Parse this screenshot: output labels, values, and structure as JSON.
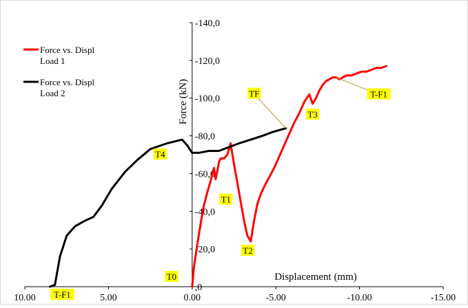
{
  "chart_data": {
    "type": "line",
    "xlabel": "Displacement (mm)",
    "ylabel": "Force (kN)",
    "xlim": [
      10,
      -15
    ],
    "ylim": [
      0,
      -140
    ],
    "x_ticks": [
      {
        "value": 10,
        "label": "10.00"
      },
      {
        "value": 5,
        "label": "5.00"
      },
      {
        "value": 0,
        "label": "0.00"
      },
      {
        "value": -5,
        "label": "-5.00"
      },
      {
        "value": -10,
        "label": "-10.00"
      },
      {
        "value": -15,
        "label": "-15.00"
      }
    ],
    "y_ticks": [
      {
        "value": 0,
        "label": ",0"
      },
      {
        "value": -20,
        "label": "-20,0"
      },
      {
        "value": -40,
        "label": "-40,0"
      },
      {
        "value": -60,
        "label": "-60,0"
      },
      {
        "value": -80,
        "label": "-80,0"
      },
      {
        "value": -100,
        "label": "-100,0"
      },
      {
        "value": -120,
        "label": "-120,0"
      },
      {
        "value": -140,
        "label": "-140,0"
      }
    ],
    "grid": false,
    "legend_position": "top-left",
    "series": [
      {
        "name": "Force vs. Displ Load 1",
        "color": "#ff0000",
        "x": [
          0.0,
          -0.1,
          -0.3,
          -0.5,
          -0.7,
          -0.9,
          -1.1,
          -1.3,
          -1.4,
          -1.5,
          -1.6,
          -1.7,
          -1.9,
          -2.1,
          -2.3,
          -2.5,
          -2.7,
          -2.9,
          -3.1,
          -3.3,
          -3.5,
          -3.7,
          -3.9,
          -4.1,
          -4.3,
          -4.6,
          -4.9,
          -5.2,
          -5.5,
          -5.8,
          -6.1,
          -6.4,
          -6.7,
          -7.0,
          -7.2,
          -7.4,
          -7.6,
          -7.8,
          -8.0,
          -8.2,
          -8.4,
          -8.6,
          -8.8,
          -9.0,
          -9.2,
          -9.5,
          -9.8,
          -10.1,
          -10.4,
          -10.7,
          -11.0,
          -11.3,
          -11.6
        ],
        "y": [
          0,
          -10,
          -22,
          -33,
          -43,
          -50,
          -56,
          -63,
          -57,
          -61,
          -66,
          -68,
          -68,
          -70,
          -76,
          -65,
          -55,
          -45,
          -35,
          -27,
          -24,
          -35,
          -44,
          -49,
          -53,
          -58,
          -63,
          -69,
          -75,
          -81,
          -87,
          -92,
          -98,
          -102,
          -97,
          -100,
          -104,
          -107,
          -109,
          -110,
          -111,
          -111,
          -110,
          -111,
          -112,
          -112,
          -113,
          -114,
          -114,
          -115,
          -116,
          -116,
          -117
        ]
      },
      {
        "name": "Force vs. Displ Load 2",
        "color": "#000000",
        "x": [
          8.5,
          8.2,
          7.9,
          7.5,
          7.0,
          6.4,
          5.9,
          5.4,
          4.8,
          4.0,
          3.3,
          2.5,
          1.5,
          0.6,
          0.3,
          0.0,
          -0.4,
          -1.0,
          -1.6,
          -2.2,
          -2.8,
          -3.5,
          -4.2,
          -4.8,
          -5.2,
          -5.6
        ],
        "y": [
          0,
          -1,
          -16,
          -27,
          -32,
          -35,
          -37,
          -43,
          -52,
          -61,
          -67,
          -73,
          -76,
          -78,
          -75,
          -71,
          -71,
          -72,
          -72,
          -74,
          -76,
          -78,
          -80,
          -82,
          -83,
          -84
        ]
      }
    ],
    "annotations": [
      {
        "label": "T0",
        "x": 0.0,
        "y": 0
      },
      {
        "label": "T1",
        "x": -1.4,
        "y": -57
      },
      {
        "label": "T2",
        "x": -3.9,
        "y": -24
      },
      {
        "label": "T3",
        "x": -7.2,
        "y": -97
      },
      {
        "label": "T4",
        "x": 0.6,
        "y": -78
      },
      {
        "label": "TF",
        "x": -5.6,
        "y": -84
      },
      {
        "label": "T-F1",
        "x": -8.6,
        "y": -111
      },
      {
        "label": "T-F1",
        "x": 8.5,
        "y": 0
      }
    ],
    "label_color": "#ffff00"
  }
}
